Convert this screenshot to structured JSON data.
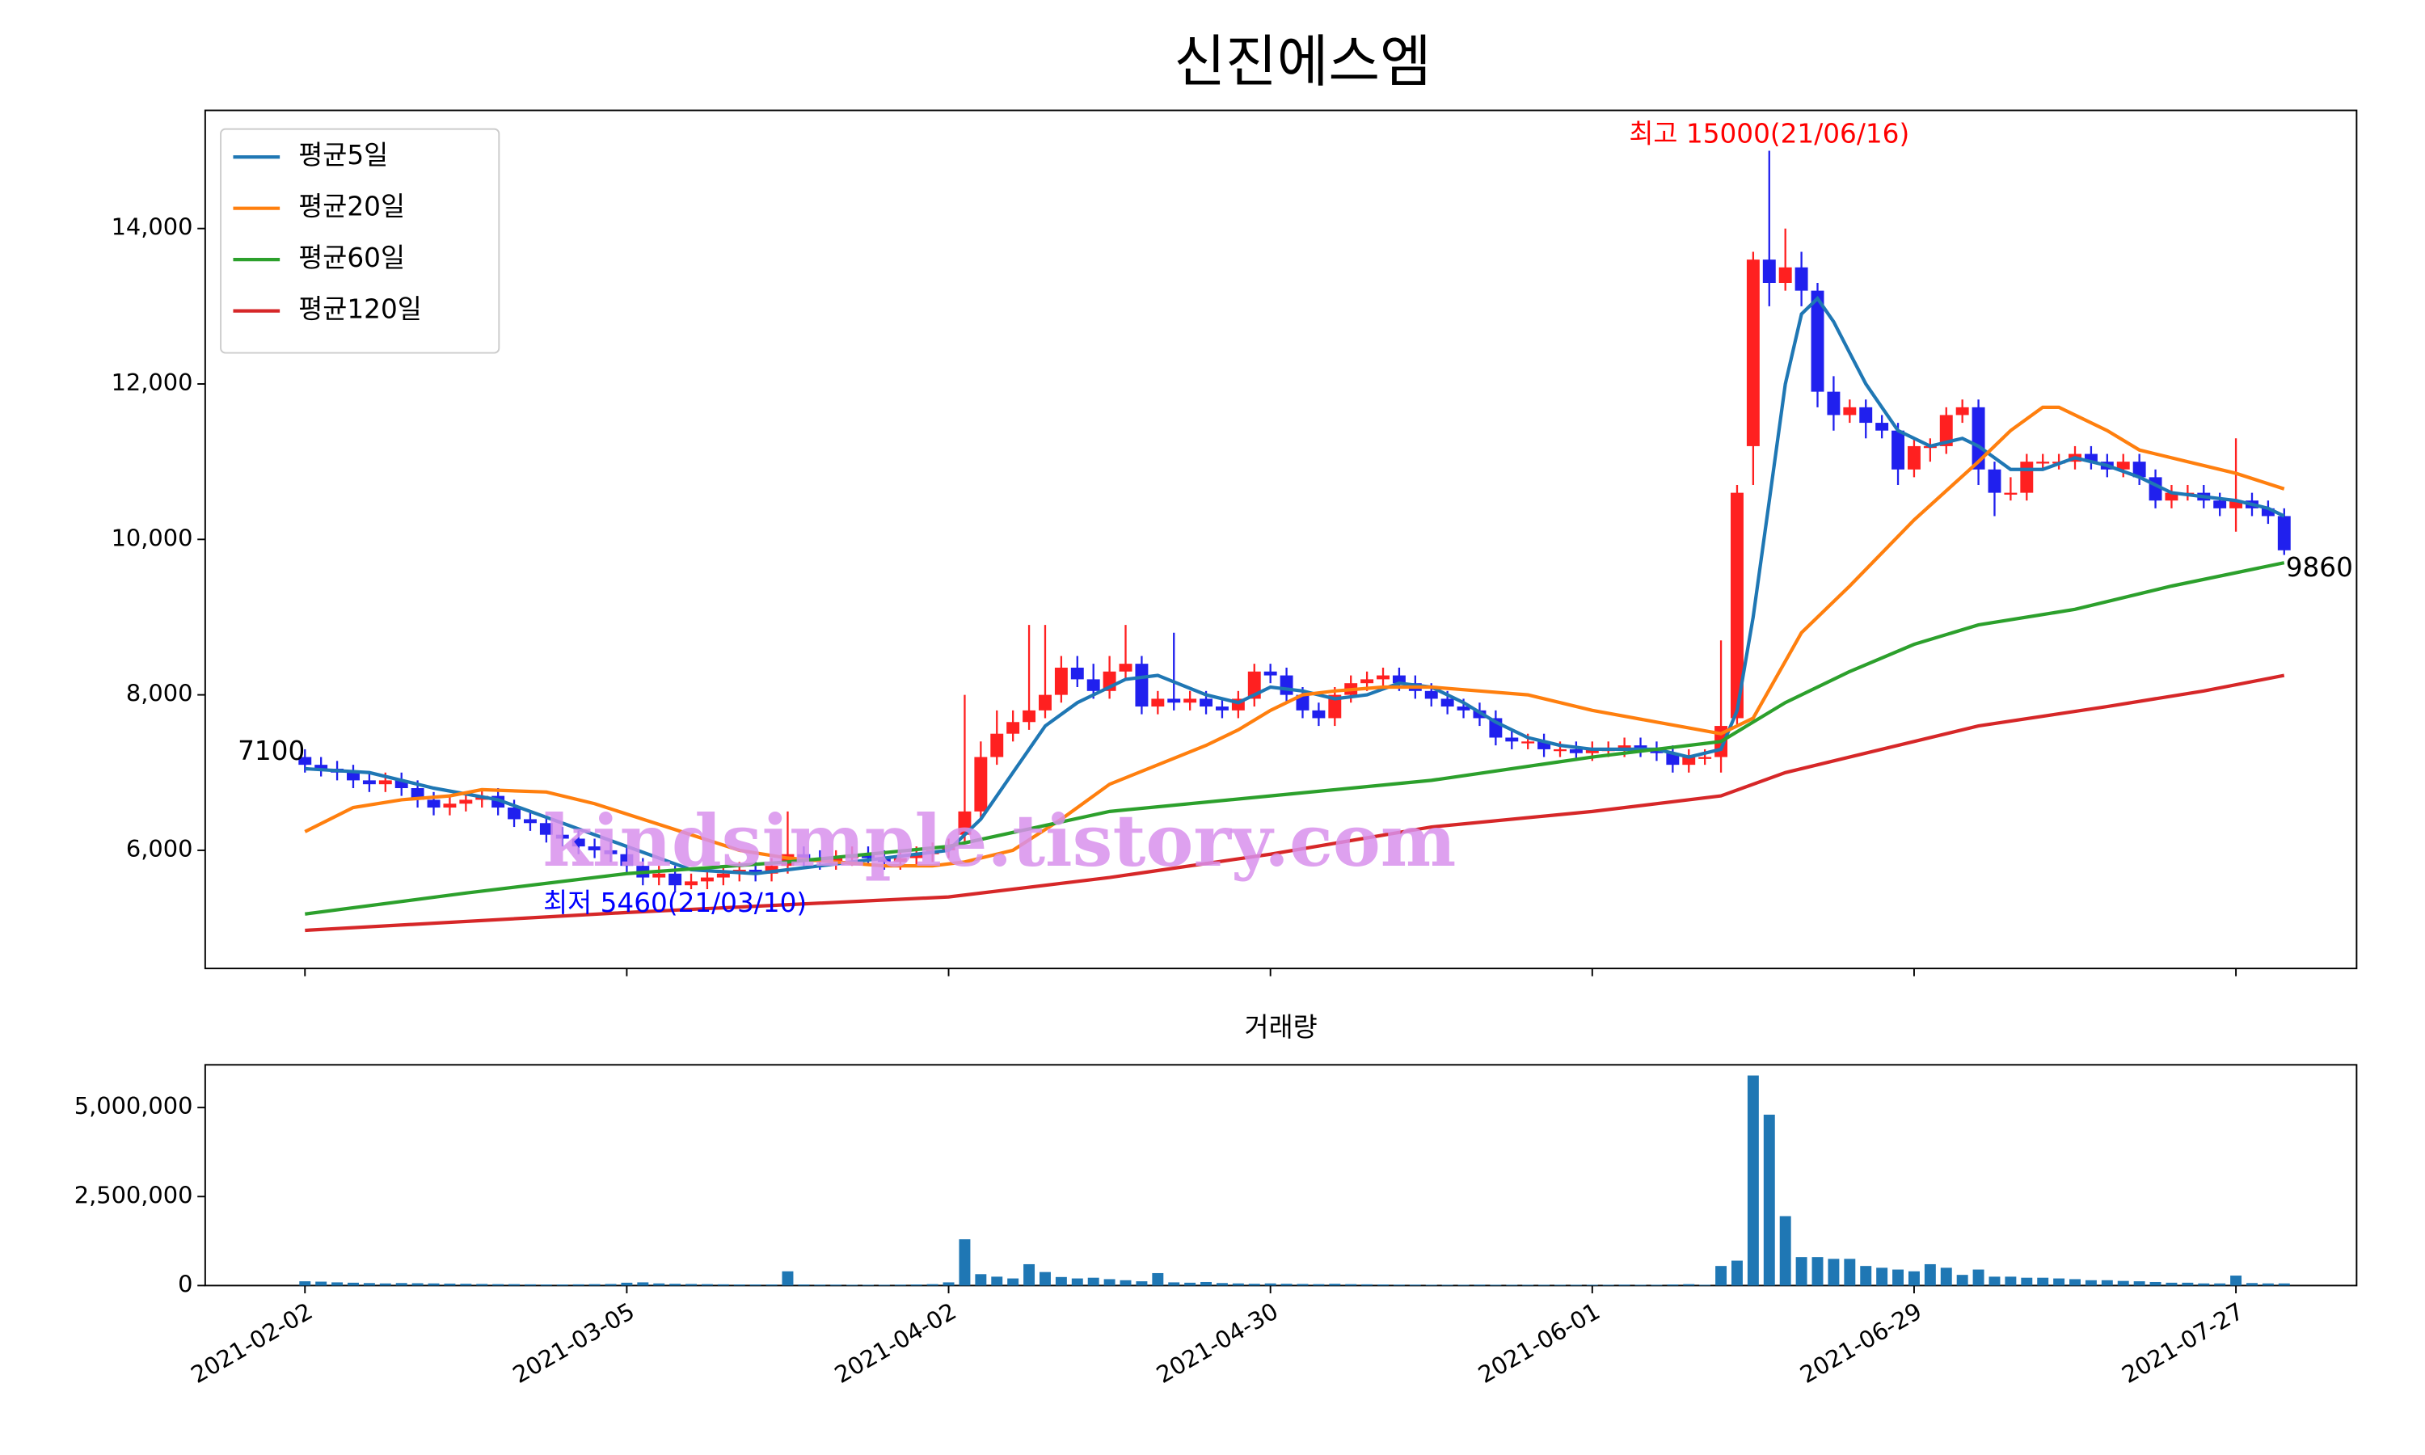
{
  "chart_data": [
    {
      "type": "candlestick",
      "title": "신진에스엠",
      "xlim": [
        -6.2,
        127.5
      ],
      "ylim": [
        4480,
        15520
      ],
      "xticks": [
        0,
        20,
        40,
        60,
        80,
        100,
        120
      ],
      "yticks": [
        {
          "value": 6000,
          "label": "6,000"
        },
        {
          "value": 8000,
          "label": "8,000"
        },
        {
          "value": 10000,
          "label": "10,000"
        },
        {
          "value": 12000,
          "label": "12,000"
        },
        {
          "value": 14000,
          "label": "14,000"
        }
      ],
      "up_color": "#ff2020",
      "down_color": "#2020ee",
      "legend": "upper left",
      "watermark": "kindsimple.tistory.com",
      "annotations": [
        {
          "text": "최고 15000(21/06/16)",
          "color": "#ff0000"
        },
        {
          "text": "최저 5460(21/03/10)",
          "color": "#0000ff"
        },
        {
          "text": "7100",
          "color": "#000000"
        },
        {
          "text": "9860",
          "color": "#000000"
        }
      ],
      "open": [
        7200,
        7100,
        7050,
        7000,
        6900,
        6850,
        6900,
        6800,
        6650,
        6550,
        6600,
        6650,
        6700,
        6550,
        6400,
        6350,
        6200,
        6150,
        6050,
        6000,
        5950,
        5800,
        5650,
        5700,
        5550,
        5600,
        5650,
        5700,
        5750,
        5700,
        5800,
        5950,
        5900,
        5850,
        5900,
        5950,
        5900,
        5850,
        5900,
        5950,
        6000,
        6200,
        6500,
        7200,
        7500,
        7650,
        7800,
        8000,
        8350,
        8200,
        8050,
        8300,
        8400,
        7850,
        7950,
        7900,
        7950,
        7850,
        7800,
        7950,
        8300,
        8250,
        8000,
        7800,
        7700,
        8000,
        8150,
        8200,
        8250,
        8150,
        8050,
        7950,
        7850,
        7800,
        7700,
        7450,
        7400,
        7400,
        7300,
        7300,
        7250,
        7300,
        7300,
        7350,
        7300,
        7250,
        7100,
        7200,
        7200,
        7700,
        11200,
        13600,
        13300,
        13500,
        13200,
        11900,
        11600,
        11700,
        11500,
        11400,
        10900,
        11200,
        11200,
        11600,
        11700,
        10900,
        10600,
        10600,
        11000,
        11000,
        11000,
        11100,
        11000,
        10900,
        11000,
        10800,
        10500,
        10600,
        10600,
        10500,
        10400,
        10500,
        10400,
        10300
      ],
      "high": [
        7300,
        7200,
        7150,
        7100,
        7000,
        7000,
        7000,
        6900,
        6750,
        6700,
        6750,
        6800,
        6800,
        6650,
        6500,
        6450,
        6300,
        6250,
        6150,
        6100,
        6050,
        5900,
        5800,
        5800,
        5700,
        5750,
        5800,
        5850,
        5850,
        5900,
        6500,
        6050,
        6000,
        6000,
        6050,
        6050,
        6000,
        6000,
        6050,
        6100,
        6150,
        8000,
        7400,
        7800,
        7800,
        8900,
        8900,
        8500,
        8500,
        8400,
        8500,
        8900,
        8500,
        8050,
        8800,
        8050,
        8050,
        7950,
        8050,
        8400,
        8400,
        8350,
        8100,
        7900,
        8100,
        8250,
        8300,
        8350,
        8350,
        8250,
        8150,
        8050,
        7950,
        7900,
        7800,
        7550,
        7500,
        7500,
        7400,
        7400,
        7400,
        7400,
        7450,
        7450,
        7400,
        7350,
        7300,
        7300,
        8700,
        10700,
        13700,
        15000,
        14000,
        13700,
        13300,
        12100,
        11800,
        11800,
        11600,
        11500,
        11300,
        11300,
        11700,
        11800,
        11800,
        11000,
        10800,
        11100,
        11100,
        11100,
        11200,
        11200,
        11100,
        11100,
        11100,
        10900,
        10700,
        10700,
        10700,
        10600,
        11300,
        10600,
        10500,
        10400
      ],
      "low": [
        7000,
        6950,
        6900,
        6800,
        6750,
        6750,
        6700,
        6550,
        6450,
        6450,
        6500,
        6550,
        6450,
        6300,
        6250,
        6100,
        6050,
        5950,
        5900,
        5850,
        5700,
        5550,
        5550,
        5460,
        5500,
        5500,
        5550,
        5600,
        5600,
        5600,
        5700,
        5800,
        5750,
        5750,
        5800,
        5800,
        5750,
        5750,
        5800,
        5850,
        5900,
        6100,
        6400,
        7100,
        7400,
        7550,
        7700,
        7900,
        8100,
        7950,
        7950,
        8200,
        7750,
        7750,
        7800,
        7800,
        7750,
        7700,
        7700,
        7850,
        8150,
        7900,
        7700,
        7600,
        7600,
        7900,
        8050,
        8100,
        8050,
        7950,
        7850,
        7750,
        7700,
        7600,
        7350,
        7300,
        7300,
        7200,
        7200,
        7150,
        7150,
        7200,
        7200,
        7200,
        7150,
        7000,
        7000,
        7100,
        7000,
        7600,
        10700,
        13000,
        13200,
        13000,
        11700,
        11400,
        11500,
        11300,
        11300,
        10700,
        10800,
        11000,
        11100,
        11500,
        10700,
        10300,
        10500,
        10500,
        10900,
        10900,
        10900,
        10900,
        10800,
        10800,
        10700,
        10400,
        10400,
        10500,
        10400,
        10300,
        10100,
        10300,
        10200,
        9800
      ],
      "close": [
        7100,
        7050,
        7000,
        6900,
        6850,
        6900,
        6800,
        6650,
        6550,
        6600,
        6650,
        6700,
        6550,
        6400,
        6350,
        6200,
        6150,
        6050,
        6000,
        5950,
        5800,
        5650,
        5700,
        5550,
        5600,
        5650,
        5700,
        5750,
        5700,
        5800,
        5950,
        5900,
        5850,
        5900,
        5950,
        5900,
        5850,
        5900,
        5950,
        6000,
        6050,
        6500,
        7200,
        7500,
        7650,
        7800,
        8000,
        8350,
        8200,
        8050,
        8300,
        8400,
        7850,
        7950,
        7900,
        7950,
        7850,
        7800,
        7950,
        8300,
        8250,
        8000,
        7800,
        7700,
        8000,
        8150,
        8200,
        8250,
        8150,
        8050,
        7950,
        7850,
        7800,
        7700,
        7450,
        7400,
        7400,
        7300,
        7300,
        7250,
        7300,
        7300,
        7350,
        7300,
        7250,
        7100,
        7200,
        7200,
        7600,
        10600,
        13600,
        13300,
        13500,
        13200,
        11900,
        11600,
        11700,
        11500,
        11400,
        10900,
        11200,
        11200,
        11600,
        11700,
        10900,
        10600,
        10600,
        11000,
        11000,
        11000,
        11100,
        11000,
        10900,
        11000,
        10800,
        10500,
        10600,
        10600,
        10500,
        10400,
        10500,
        10400,
        10300,
        9860
      ],
      "series": [
        {
          "name": "평균5일",
          "color": "#1f77b4",
          "x": [
            0,
            4,
            8,
            12,
            16,
            20,
            24,
            28,
            32,
            36,
            40,
            42,
            44,
            46,
            48,
            51,
            53,
            56,
            58,
            60,
            62,
            64,
            66,
            68,
            70,
            72,
            74,
            76,
            78,
            80,
            84,
            86,
            88,
            89,
            90,
            91,
            92,
            93,
            94,
            95,
            96,
            97,
            98,
            99,
            101,
            103,
            104,
            106,
            108,
            110,
            112,
            114,
            116,
            118,
            120,
            122,
            123
          ],
          "values": [
            7050,
            7000,
            6800,
            6650,
            6350,
            6050,
            5750,
            5700,
            5800,
            5900,
            6000,
            6400,
            7000,
            7600,
            7900,
            8200,
            8250,
            8000,
            7900,
            8100,
            8050,
            7950,
            8000,
            8150,
            8100,
            7900,
            7650,
            7450,
            7350,
            7300,
            7300,
            7200,
            7300,
            7800,
            9000,
            10500,
            12000,
            12900,
            13100,
            12800,
            12400,
            12000,
            11700,
            11400,
            11200,
            11300,
            11200,
            10900,
            10900,
            11050,
            10950,
            10800,
            10600,
            10550,
            10500,
            10400,
            10300
          ]
        },
        {
          "name": "평균20일",
          "color": "#ff7f0e",
          "x": [
            0,
            3,
            6,
            9,
            11,
            15,
            18,
            21,
            24,
            27,
            30,
            33,
            36,
            39,
            41,
            44,
            47,
            50,
            53,
            56,
            58,
            60,
            62,
            64,
            67,
            70,
            73,
            76,
            78,
            80,
            84,
            88,
            90,
            93,
            96,
            100,
            104,
            106,
            108,
            109,
            112,
            114,
            117,
            120,
            123
          ],
          "values": [
            6240,
            6550,
            6650,
            6700,
            6780,
            6750,
            6600,
            6400,
            6200,
            6000,
            5900,
            5850,
            5800,
            5800,
            5850,
            6000,
            6400,
            6850,
            7100,
            7350,
            7550,
            7800,
            8000,
            8050,
            8100,
            8100,
            8050,
            8000,
            7900,
            7800,
            7650,
            7500,
            7700,
            8800,
            9400,
            10250,
            11000,
            11400,
            11700,
            11700,
            11400,
            11150,
            11000,
            10850,
            10650
          ]
        },
        {
          "name": "평균60일",
          "color": "#2ca02c",
          "x": [
            0,
            10,
            20,
            30,
            40,
            50,
            60,
            70,
            80,
            88,
            92,
            96,
            100,
            104,
            110,
            116,
            123
          ],
          "values": [
            5180,
            5450,
            5700,
            5850,
            6050,
            6500,
            6700,
            6900,
            7200,
            7400,
            7900,
            8300,
            8650,
            8900,
            9100,
            9400,
            9700
          ]
        },
        {
          "name": "평균120일",
          "color": "#d62728",
          "x": [
            0,
            20,
            40,
            50,
            60,
            70,
            80,
            88,
            92,
            100,
            104,
            112,
            118,
            123
          ],
          "values": [
            4970,
            5200,
            5400,
            5650,
            5950,
            6300,
            6500,
            6700,
            7000,
            7400,
            7600,
            7850,
            8050,
            8250
          ]
        }
      ]
    },
    {
      "type": "bar",
      "title": "거래량",
      "color": "#1f77b4",
      "xlim": [
        -6.2,
        127.5
      ],
      "ylim": [
        0,
        6200000
      ],
      "xticks": [
        {
          "value": 0,
          "label": "2021-02-02"
        },
        {
          "value": 20,
          "label": "2021-03-05"
        },
        {
          "value": 40,
          "label": "2021-04-02"
        },
        {
          "value": 60,
          "label": "2021-04-30"
        },
        {
          "value": 80,
          "label": "2021-06-01"
        },
        {
          "value": 100,
          "label": "2021-06-29"
        },
        {
          "value": 120,
          "label": "2021-07-27"
        }
      ],
      "yticks": [
        0,
        {
          "value": 2500000,
          "label": "2,500,000"
        },
        {
          "value": 5000000,
          "label": "5,000,000"
        }
      ],
      "values": [
        120000,
        110000,
        90000,
        80000,
        70000,
        60000,
        70000,
        65000,
        60000,
        55000,
        50000,
        45000,
        40000,
        40000,
        35000,
        30000,
        30000,
        35000,
        40000,
        45000,
        80000,
        90000,
        60000,
        50000,
        45000,
        40000,
        35000,
        30000,
        30000,
        30000,
        400000,
        30000,
        25000,
        25000,
        20000,
        20000,
        20000,
        25000,
        30000,
        40000,
        90000,
        1300000,
        320000,
        250000,
        200000,
        600000,
        380000,
        240000,
        200000,
        220000,
        180000,
        150000,
        120000,
        350000,
        90000,
        80000,
        100000,
        70000,
        60000,
        50000,
        60000,
        50000,
        45000,
        40000,
        50000,
        40000,
        35000,
        30000,
        25000,
        25000,
        20000,
        20000,
        20000,
        25000,
        20000,
        20000,
        20000,
        20000,
        20000,
        20000,
        20000,
        20000,
        25000,
        20000,
        20000,
        30000,
        40000,
        20000,
        550000,
        700000,
        5900000,
        4800000,
        1950000,
        800000,
        800000,
        750000,
        750000,
        550000,
        500000,
        450000,
        400000,
        600000,
        500000,
        300000,
        450000,
        250000,
        250000,
        220000,
        220000,
        200000,
        180000,
        150000,
        150000,
        130000,
        120000,
        100000,
        80000,
        80000,
        60000,
        60000,
        280000,
        70000,
        60000,
        60000
      ]
    }
  ]
}
